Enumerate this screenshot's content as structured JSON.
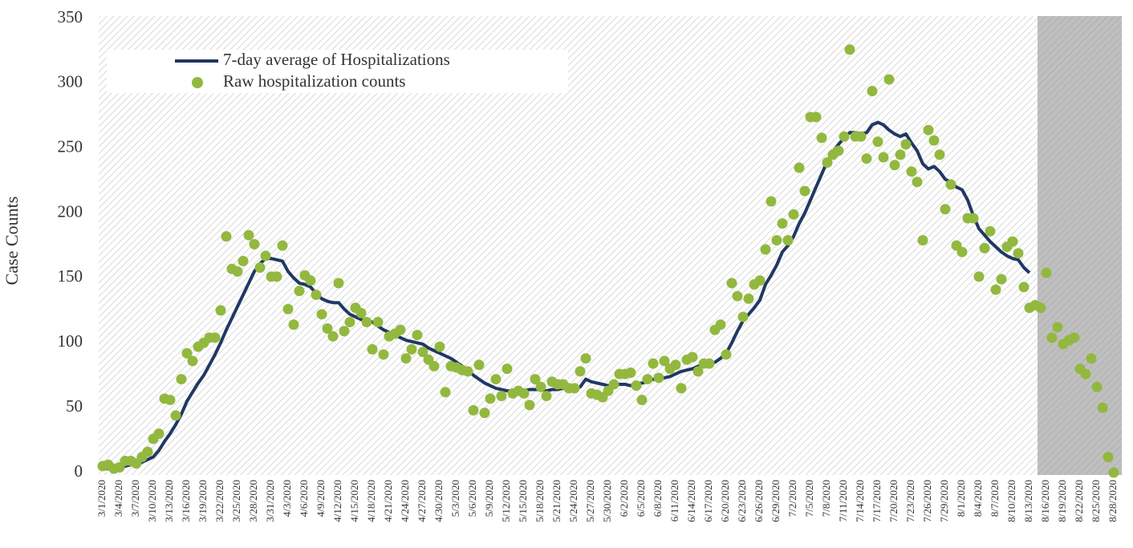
{
  "chart_data": {
    "type": "line",
    "y_label": "Case Counts",
    "ylim": [
      0,
      350
    ],
    "yticks": [
      0,
      50,
      100,
      150,
      200,
      250,
      300,
      350
    ],
    "grid": false,
    "legend": "upper left",
    "categories": [
      "3/1/2020",
      null,
      null,
      "3/4/2020",
      null,
      null,
      "3/7/2020",
      null,
      null,
      "3/10/2020",
      null,
      null,
      "3/13/2020",
      null,
      null,
      "3/16/2020",
      null,
      null,
      "3/19/2020",
      null,
      null,
      "3/22/2020",
      null,
      null,
      "3/25/2020",
      null,
      null,
      "3/28/2020",
      null,
      null,
      "3/31/2020",
      null,
      null,
      "4/3/2020",
      null,
      null,
      "4/6/2020",
      null,
      null,
      "4/9/2020",
      null,
      null,
      "4/12/2020",
      null,
      null,
      "4/15/2020",
      null,
      null,
      "4/18/2020",
      null,
      null,
      "4/21/2020",
      null,
      null,
      "4/24/2020",
      null,
      null,
      "4/27/2020",
      null,
      null,
      "4/30/2020",
      null,
      null,
      "5/3/2020",
      null,
      null,
      "5/6/2020",
      null,
      null,
      "5/9/2020",
      null,
      null,
      "5/12/2020",
      null,
      null,
      "5/15/2020",
      null,
      null,
      "5/18/2020",
      null,
      null,
      "5/21/2020",
      null,
      null,
      "5/24/2020",
      null,
      null,
      "5/27/2020",
      null,
      null,
      "5/30/2020",
      null,
      null,
      "6/2/2020",
      null,
      null,
      "6/5/2020",
      null,
      null,
      "6/8/2020",
      null,
      null,
      "6/11/2020",
      null,
      null,
      "6/14/2020",
      null,
      null,
      "6/17/2020",
      null,
      null,
      "6/20/2020",
      null,
      null,
      "6/23/2020",
      null,
      null,
      "6/26/2020",
      null,
      null,
      "6/29/2020",
      null,
      null,
      "7/2/2020",
      null,
      null,
      "7/5/2020",
      null,
      null,
      "7/8/2020",
      null,
      null,
      "7/11/2020",
      null,
      null,
      "7/14/2020",
      null,
      null,
      "7/17/2020",
      null,
      null,
      "7/20/2020",
      null,
      null,
      "7/23/2020",
      null,
      null,
      "7/26/2020",
      null,
      null,
      "7/29/2020",
      null,
      null,
      "8/1/2020",
      null,
      null,
      "8/4/2020",
      null,
      null,
      "8/7/2020",
      null,
      null,
      "8/10/2020",
      null,
      null,
      "8/13/2020",
      null,
      null,
      "8/16/2020",
      null,
      null,
      "8/19/2020",
      null,
      null,
      "8/22/2020",
      null,
      null,
      "8/25/2020",
      null,
      null,
      "8/28/2020"
    ],
    "series": [
      {
        "name": "7-day average of Hospitalizations",
        "type": "line",
        "color": "#1f3864",
        "values": [
          3,
          3,
          4,
          4,
          5,
          6,
          6,
          8,
          10,
          12,
          17,
          24,
          30,
          37,
          45,
          55,
          62,
          69,
          75,
          83,
          91,
          100,
          110,
          119,
          128,
          137,
          146,
          155,
          161,
          165,
          165,
          164,
          163,
          155,
          150,
          146,
          145,
          143,
          138,
          134,
          132,
          131,
          131,
          126,
          122,
          120,
          118,
          117,
          116,
          113,
          110,
          108,
          106,
          104,
          102,
          101,
          100,
          99,
          96,
          94,
          92,
          90,
          88,
          85,
          82,
          79,
          75,
          72,
          69,
          67,
          65,
          64,
          63,
          63,
          63,
          63,
          64,
          64,
          64,
          63,
          64,
          64,
          65,
          65,
          65,
          66,
          72,
          70,
          69,
          68,
          67,
          67,
          68,
          68,
          67,
          68,
          69,
          70,
          72,
          72,
          73,
          74,
          76,
          78,
          79,
          80,
          82,
          83,
          83,
          85,
          88,
          92,
          100,
          109,
          117,
          122,
          127,
          133,
          145,
          152,
          160,
          170,
          175,
          182,
          192,
          200,
          210,
          220,
          230,
          240,
          247,
          253,
          258,
          262,
          262,
          261,
          262,
          268,
          270,
          268,
          264,
          261,
          259,
          261,
          254,
          248,
          238,
          234,
          236,
          232,
          226,
          224,
          220,
          218,
          210,
          198,
          188,
          183,
          178,
          174,
          170,
          167,
          165,
          164,
          158,
          154,
          null,
          null,
          null,
          null,
          null,
          null,
          null,
          null,
          null,
          null,
          null,
          null,
          null,
          null,
          null
        ]
      },
      {
        "name": "Raw hospitalization counts",
        "type": "scatter",
        "color": "#92b83f",
        "values": [
          5,
          6,
          3,
          4,
          9,
          9,
          7,
          12,
          16,
          26,
          30,
          57,
          56,
          44,
          72,
          92,
          86,
          97,
          100,
          104,
          104,
          125,
          182,
          157,
          155,
          163,
          183,
          176,
          158,
          167,
          151,
          151,
          175,
          126,
          114,
          140,
          152,
          148,
          137,
          122,
          111,
          105,
          146,
          109,
          116,
          127,
          123,
          116,
          95,
          116,
          91,
          105,
          107,
          110,
          88,
          95,
          106,
          93,
          87,
          82,
          97,
          62,
          82,
          81,
          79,
          78,
          48,
          83,
          46,
          57,
          72,
          59,
          80,
          61,
          63,
          61,
          52,
          72,
          66,
          59,
          70,
          68,
          68,
          65,
          65,
          78,
          88,
          61,
          60,
          58,
          63,
          68,
          76,
          76,
          77,
          67,
          56,
          72,
          84,
          73,
          86,
          80,
          83,
          65,
          87,
          89,
          78,
          84,
          84,
          110,
          114,
          91,
          146,
          136,
          120,
          134,
          145,
          148,
          172,
          209,
          179,
          192,
          179,
          199,
          235,
          217,
          274,
          274,
          258,
          239,
          245,
          248,
          259,
          326,
          259,
          259,
          242,
          294,
          255,
          243,
          303,
          237,
          245,
          253,
          232,
          224,
          179,
          264,
          256,
          245,
          203,
          222,
          175,
          170,
          196,
          196,
          151,
          173,
          186,
          141,
          149,
          174,
          178,
          169,
          143,
          127,
          129,
          127,
          154,
          104,
          112,
          99,
          102,
          104,
          80,
          76,
          88,
          66,
          50,
          12,
          0
        ]
      }
    ]
  }
}
